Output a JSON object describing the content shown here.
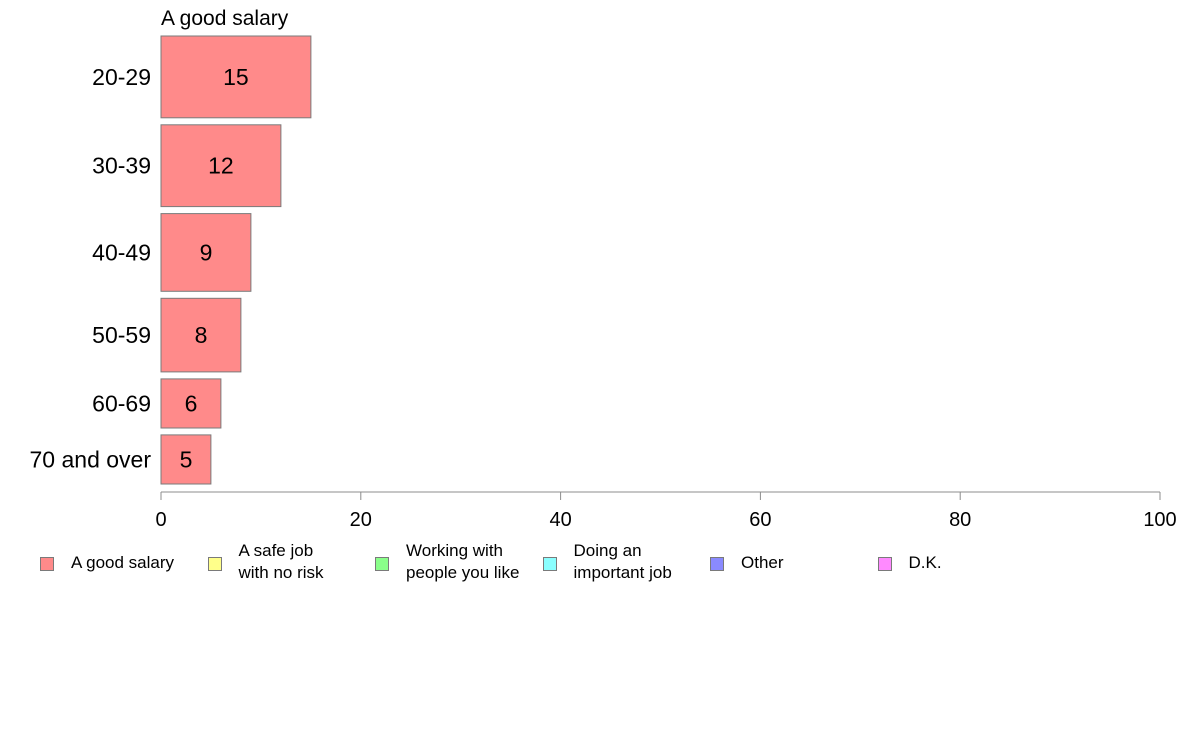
{
  "chart_data": {
    "type": "bar",
    "orientation": "horizontal",
    "title": "A good salary",
    "categories": [
      "20-29",
      "30-39",
      "40-49",
      "50-59",
      "60-69",
      "70 and over"
    ],
    "series": [
      {
        "name": "A good salary",
        "color": "#ff8a8a",
        "values": [
          15,
          12,
          9,
          8,
          6,
          5
        ]
      }
    ],
    "data_labels": [
      "15",
      "12",
      "9",
      "8",
      "6",
      "5"
    ],
    "bar_widths_relative": [
      1.0,
      1.0,
      0.95,
      0.9,
      0.6,
      0.6
    ],
    "xlim": [
      0,
      100
    ],
    "xticks": [
      0,
      20,
      40,
      60,
      80,
      100
    ],
    "xtick_labels": [
      "0",
      "20",
      "40",
      "60",
      "80",
      "100"
    ],
    "grid": false,
    "legend_position": "bottom"
  },
  "legend": {
    "items": [
      {
        "label": "A good salary",
        "color": "#ff8a8a"
      },
      {
        "label": "A safe job\nwith no risk",
        "color": "#ffff8a"
      },
      {
        "label": "Working with\npeople you like",
        "color": "#8aff8a"
      },
      {
        "label": "Doing an\nimportant job",
        "color": "#8affff"
      },
      {
        "label": "Other",
        "color": "#8a8aff"
      },
      {
        "label": "D.K.",
        "color": "#ff8aff"
      }
    ]
  }
}
